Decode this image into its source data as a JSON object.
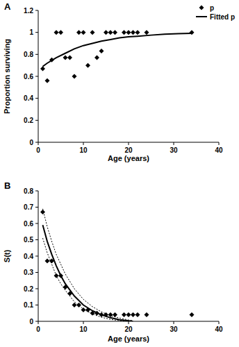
{
  "chart_data": [
    {
      "type": "scatter",
      "panel_label": "A",
      "x_label": "Age (years)",
      "y_label": "Proportion surviving",
      "xlim": [
        0,
        40
      ],
      "xticks": [
        0,
        10,
        20,
        30,
        40
      ],
      "ylim": [
        0,
        1.2
      ],
      "yticks": [
        0,
        0.2,
        0.4,
        0.6,
        0.8,
        1,
        1.2
      ],
      "legend": "top-right",
      "series": [
        {
          "name": "p",
          "type": "scatter",
          "marker": "diamond",
          "color": "#000000",
          "x": [
            1,
            2,
            3,
            4,
            5,
            6,
            7,
            8,
            9,
            10,
            11,
            12,
            13,
            14,
            15,
            16,
            17,
            19,
            20,
            21,
            22,
            24,
            34
          ],
          "values": [
            0.67,
            0.56,
            0.75,
            1,
            1,
            0.77,
            0.77,
            0.6,
            1,
            1,
            0.7,
            1,
            0.77,
            0.83,
            1,
            1,
            1,
            1,
            1,
            1,
            1,
            1,
            1
          ]
        },
        {
          "name": "Fitted p",
          "type": "line",
          "line_style": "solid",
          "color": "#000000",
          "x": [
            1,
            2,
            4,
            6,
            8,
            10,
            12,
            14,
            16,
            18,
            20,
            22,
            25,
            28,
            31,
            34
          ],
          "values": [
            0.69,
            0.72,
            0.77,
            0.81,
            0.85,
            0.88,
            0.9,
            0.92,
            0.935,
            0.95,
            0.96,
            0.965,
            0.975,
            0.983,
            0.988,
            0.992
          ]
        }
      ]
    },
    {
      "type": "scatter",
      "panel_label": "B",
      "x_label": "Age (years)",
      "y_label": "S(t)",
      "xlim": [
        0,
        40
      ],
      "xticks": [
        0,
        10,
        20,
        30,
        40
      ],
      "ylim": [
        0,
        0.8
      ],
      "yticks": [
        0,
        0.1,
        0.2,
        0.3,
        0.4,
        0.5,
        0.6,
        0.7,
        0.8
      ],
      "series": [
        {
          "type": "scatter",
          "marker": "diamond",
          "color": "#000000",
          "x": [
            1,
            2,
            3,
            4,
            5,
            6,
            7,
            8,
            9,
            10,
            11,
            12,
            13,
            14,
            15,
            16,
            17,
            19,
            20,
            21,
            22,
            24,
            34
          ],
          "values": [
            0.67,
            0.37,
            0.37,
            0.28,
            0.28,
            0.21,
            0.17,
            0.1,
            0.1,
            0.07,
            0.07,
            0.05,
            0.05,
            0.04,
            0.04,
            0.04,
            0.04,
            0.04,
            0.04,
            0.04,
            0.04,
            0.04,
            0.04
          ]
        },
        {
          "type": "line",
          "line_style": "solid",
          "color": "#000000",
          "x": [
            1,
            2,
            3,
            4,
            5,
            6,
            8,
            10,
            12,
            14,
            16,
            18,
            20,
            21
          ],
          "values": [
            0.59,
            0.49,
            0.41,
            0.34,
            0.28,
            0.23,
            0.155,
            0.1,
            0.065,
            0.04,
            0.022,
            0.01,
            0.003,
            0
          ]
        },
        {
          "type": "line",
          "line_style": "dotted",
          "color": "#000000",
          "x": [
            1,
            2,
            3,
            4,
            5,
            6,
            8,
            10,
            12,
            14,
            16,
            18,
            20,
            21
          ],
          "values": [
            0.69,
            0.58,
            0.49,
            0.41,
            0.35,
            0.29,
            0.2,
            0.135,
            0.09,
            0.058,
            0.035,
            0.02,
            0.008,
            0.004
          ]
        },
        {
          "type": "line",
          "line_style": "dotted",
          "color": "#000000",
          "x": [
            1,
            2,
            3,
            4,
            5,
            6,
            8,
            10,
            12,
            14,
            16,
            18,
            20,
            21
          ],
          "values": [
            0.51,
            0.42,
            0.35,
            0.28,
            0.23,
            0.19,
            0.12,
            0.075,
            0.045,
            0.025,
            0.012,
            0.004,
            0,
            0
          ]
        }
      ]
    }
  ]
}
